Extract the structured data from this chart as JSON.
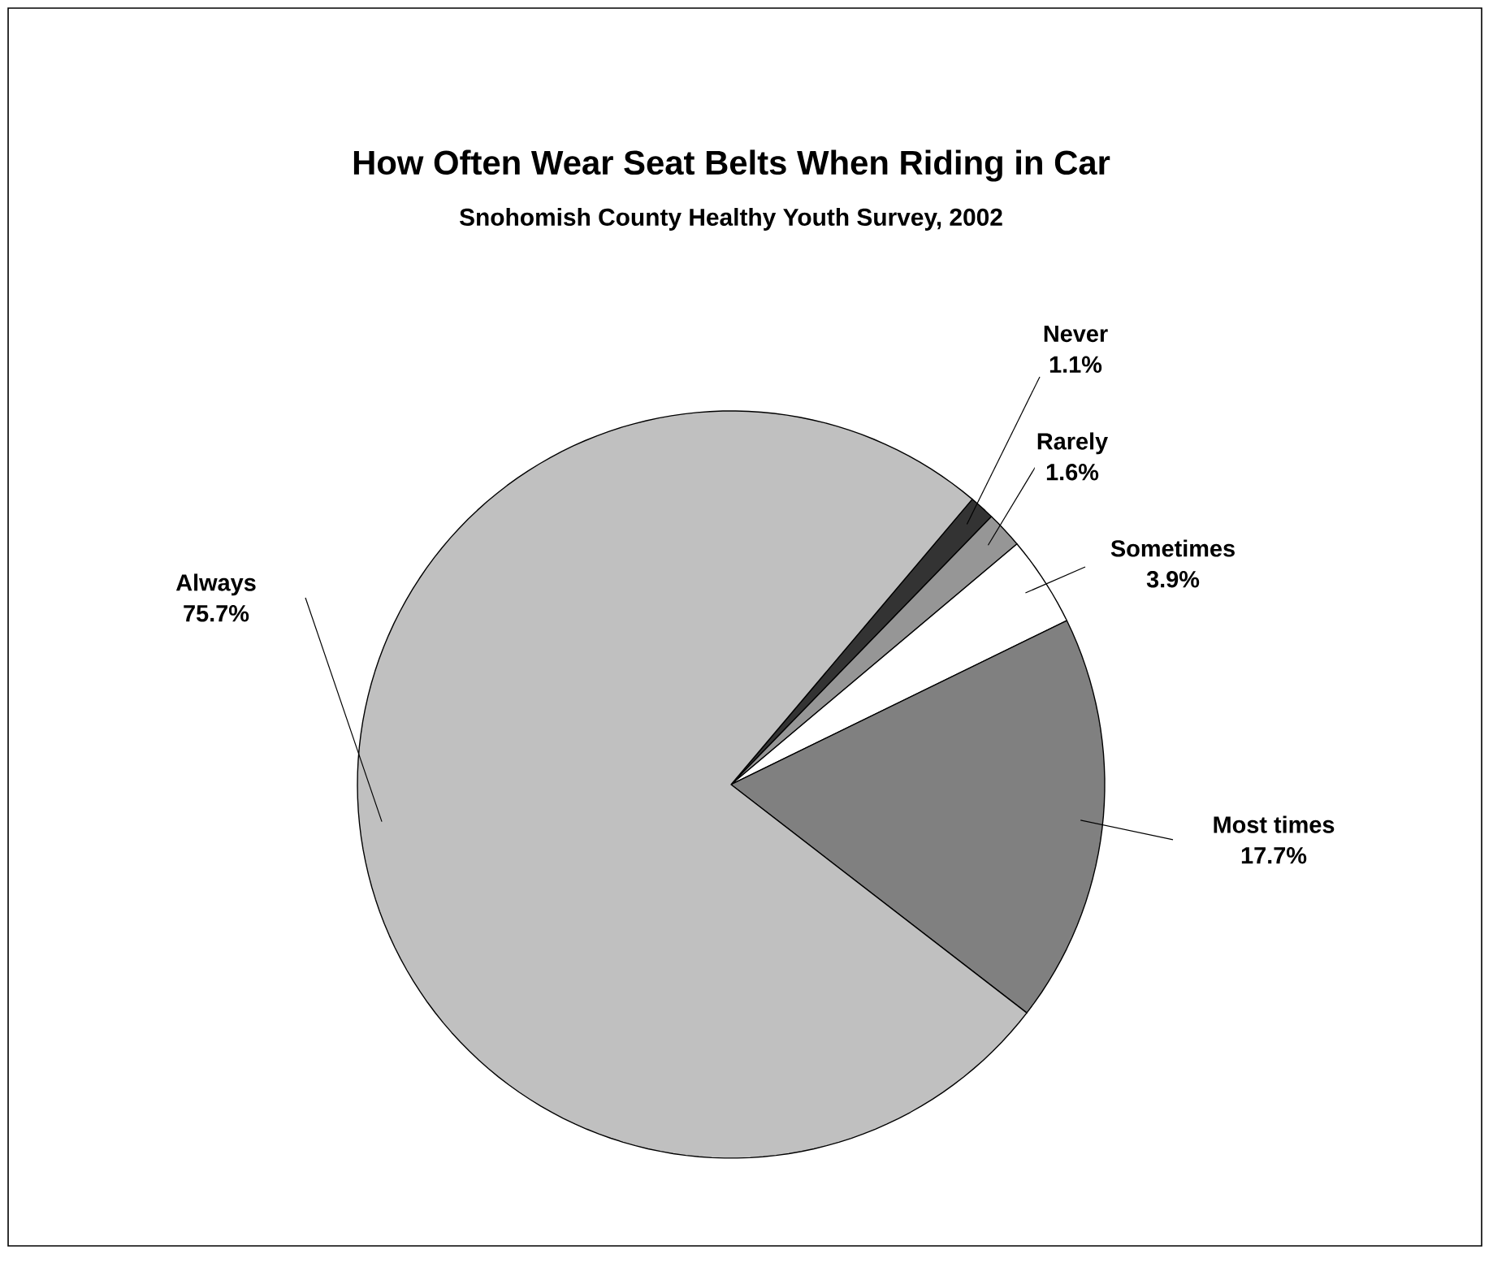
{
  "chart_data": {
    "type": "pie",
    "title": "How Often Wear Seat Belts When Riding in Car",
    "subtitle": "Snohomish County Healthy Youth Survey, 2002",
    "categories": [
      "Never",
      "Rarely",
      "Sometimes",
      "Most times",
      "Always"
    ],
    "values": [
      1.1,
      1.6,
      3.9,
      17.7,
      75.7
    ],
    "value_labels": [
      "1.1%",
      "1.6%",
      "3.9%",
      "17.7%",
      "75.7%"
    ],
    "colors": [
      "#333333",
      "#969696",
      "#ffffff",
      "#808080",
      "#c0c0c0"
    ]
  }
}
